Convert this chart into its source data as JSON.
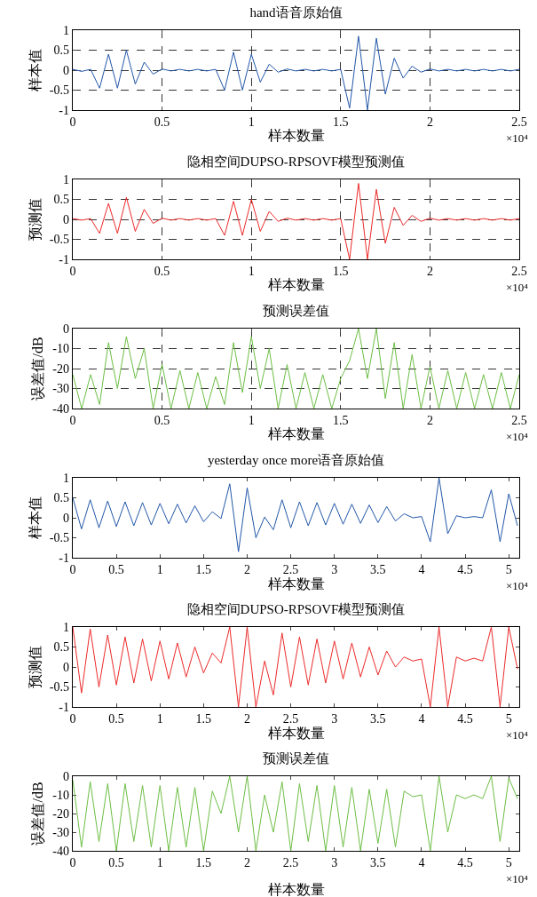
{
  "chart_data": [
    {
      "type": "line",
      "title": "hand语音原始值",
      "xlabel": "样本数量",
      "ylabel": "样本值",
      "annotations": [
        "×10⁴"
      ],
      "grid": true,
      "xlim": [
        0,
        2.5
      ],
      "ylim": [
        -1,
        1
      ],
      "xticks": [
        0,
        0.5,
        1,
        1.5,
        2,
        2.5
      ],
      "yticks": [
        -1,
        -0.5,
        0,
        0.5,
        1
      ],
      "x": [
        0,
        0.05,
        0.1,
        0.15,
        0.2,
        0.25,
        0.3,
        0.35,
        0.4,
        0.45,
        0.5,
        0.55,
        0.6,
        0.65,
        0.7,
        0.75,
        0.8,
        0.85,
        0.9,
        0.95,
        1,
        1.05,
        1.1,
        1.15,
        1.2,
        1.25,
        1.3,
        1.35,
        1.4,
        1.45,
        1.5,
        1.55,
        1.6,
        1.65,
        1.7,
        1.75,
        1.8,
        1.85,
        1.9,
        1.95,
        2,
        2.05,
        2.1,
        2.15,
        2.2,
        2.25,
        2.3,
        2.35,
        2.4,
        2.45,
        2.5
      ],
      "series": [
        {
          "color": "#2257a8",
          "values": [
            0.02,
            -0.03,
            0.02,
            -0.45,
            0.4,
            -0.45,
            0.5,
            -0.35,
            0.2,
            -0.1,
            0.03,
            -0.02,
            0.02,
            -0.02,
            0.02,
            -0.02,
            0.02,
            -0.5,
            0.45,
            -0.5,
            0.4,
            -0.3,
            0.15,
            -0.05,
            0.03,
            -0.02,
            0.02,
            -0.02,
            0.02,
            -0.02,
            0.02,
            -0.95,
            0.85,
            -1,
            0.8,
            -0.6,
            0.3,
            -0.2,
            0.1,
            -0.05,
            0.03,
            -0.02,
            0.02,
            -0.02,
            0.02,
            -0.02,
            0.02,
            -0.02,
            0.02,
            -0.02,
            0.02
          ]
        }
      ]
    },
    {
      "type": "line",
      "title": "隐相空间DUPSO-RPSOVF模型预测值",
      "xlabel": "样本数量",
      "ylabel": "预测值",
      "annotations": [
        "×10⁴"
      ],
      "grid": true,
      "xlim": [
        0,
        2.5
      ],
      "ylim": [
        -1,
        1
      ],
      "xticks": [
        0,
        0.5,
        1,
        1.5,
        2,
        2.5
      ],
      "yticks": [
        -1,
        -0.5,
        0,
        0.5,
        1
      ],
      "x": [
        0,
        0.05,
        0.1,
        0.15,
        0.2,
        0.25,
        0.3,
        0.35,
        0.4,
        0.45,
        0.5,
        0.55,
        0.6,
        0.65,
        0.7,
        0.75,
        0.8,
        0.85,
        0.9,
        0.95,
        1,
        1.05,
        1.1,
        1.15,
        1.2,
        1.25,
        1.3,
        1.35,
        1.4,
        1.45,
        1.5,
        1.55,
        1.6,
        1.65,
        1.7,
        1.75,
        1.8,
        1.85,
        1.9,
        1.95,
        2,
        2.05,
        2.1,
        2.15,
        2.2,
        2.25,
        2.3,
        2.35,
        2.4,
        2.45,
        2.5
      ],
      "series": [
        {
          "color": "#ec2a2a",
          "values": [
            0.02,
            -0.02,
            0.02,
            -0.35,
            0.4,
            -0.35,
            0.55,
            -0.3,
            0.25,
            -0.1,
            0.03,
            -0.02,
            0.02,
            -0.02,
            0.02,
            -0.02,
            0.02,
            -0.4,
            0.45,
            -0.4,
            0.5,
            -0.3,
            0.2,
            -0.05,
            0.03,
            -0.02,
            0.02,
            -0.02,
            0.02,
            -0.02,
            0.02,
            -1,
            0.9,
            -1,
            0.75,
            -0.6,
            0.3,
            -0.15,
            0.1,
            -0.05,
            0.03,
            -0.02,
            0.02,
            -0.02,
            0.02,
            -0.02,
            0.02,
            -0.02,
            0.02,
            -0.02,
            0.02
          ]
        }
      ]
    },
    {
      "type": "line",
      "title": "预测误差值",
      "xlabel": "样本数量",
      "ylabel": "误差值/dB",
      "annotations": [
        "×10⁴"
      ],
      "grid": true,
      "xlim": [
        0,
        2.5
      ],
      "ylim": [
        -40,
        0
      ],
      "xticks": [
        0,
        0.5,
        1,
        1.5,
        2,
        2.5
      ],
      "yticks": [
        -40,
        -30,
        -20,
        -10,
        0
      ],
      "x": [
        0,
        0.05,
        0.1,
        0.15,
        0.2,
        0.25,
        0.3,
        0.35,
        0.4,
        0.45,
        0.5,
        0.55,
        0.6,
        0.65,
        0.7,
        0.75,
        0.8,
        0.85,
        0.9,
        0.95,
        1,
        1.05,
        1.1,
        1.15,
        1.2,
        1.25,
        1.3,
        1.35,
        1.4,
        1.45,
        1.5,
        1.55,
        1.6,
        1.65,
        1.7,
        1.75,
        1.8,
        1.85,
        1.9,
        1.95,
        2,
        2.05,
        2.1,
        2.15,
        2.2,
        2.25,
        2.3,
        2.35,
        2.4,
        2.45,
        2.5
      ],
      "series": [
        {
          "color": "#6dbe45",
          "values": [
            -23,
            -40,
            -23,
            -38,
            -7,
            -30,
            -4,
            -25,
            -10,
            -40,
            -18,
            -40,
            -21,
            -40,
            -22,
            -40,
            -24,
            -38,
            -7,
            -32,
            -4,
            -30,
            -10,
            -40,
            -18,
            -40,
            -22,
            -40,
            -23,
            -40,
            -25,
            -16,
            0,
            -25,
            0,
            -35,
            -7,
            -40,
            -13,
            -40,
            -19,
            -40,
            -21,
            -40,
            -22,
            -40,
            -23,
            -40,
            -22,
            -40,
            -23
          ]
        }
      ]
    },
    {
      "type": "line",
      "title": "yesterday once more语音原始值",
      "xlabel": "样本数量",
      "ylabel": "样本值",
      "annotations": [
        "×10⁴"
      ],
      "xlim": [
        0,
        5.12
      ],
      "ylim": [
        -1,
        1
      ],
      "xticks": [
        0,
        0.5,
        1,
        1.5,
        2,
        2.5,
        3,
        3.5,
        4,
        4.5,
        5
      ],
      "yticks": [
        -1,
        -0.5,
        0,
        0.5,
        1
      ],
      "x": [
        0,
        0.1,
        0.2,
        0.3,
        0.4,
        0.5,
        0.6,
        0.7,
        0.8,
        0.9,
        1,
        1.1,
        1.2,
        1.3,
        1.4,
        1.5,
        1.6,
        1.7,
        1.8,
        1.9,
        2,
        2.1,
        2.2,
        2.3,
        2.4,
        2.5,
        2.6,
        2.7,
        2.8,
        2.9,
        3,
        3.1,
        3.2,
        3.3,
        3.4,
        3.5,
        3.6,
        3.7,
        3.8,
        3.9,
        4,
        4.1,
        4.2,
        4.3,
        4.4,
        4.5,
        4.6,
        4.7,
        4.8,
        4.9,
        5,
        5.1
      ],
      "series": [
        {
          "color": "#2257a8",
          "values": [
            0.5,
            -0.28,
            0.45,
            -0.25,
            0.42,
            -0.22,
            0.4,
            -0.2,
            0.38,
            -0.18,
            0.36,
            -0.15,
            0.34,
            -0.13,
            0.3,
            -0.1,
            0.15,
            -0.02,
            0.85,
            -0.85,
            0.75,
            -0.5,
            0.02,
            -0.3,
            0.45,
            -0.25,
            0.4,
            -0.2,
            0.38,
            -0.18,
            0.36,
            -0.16,
            0.34,
            -0.14,
            0.32,
            -0.12,
            0.28,
            -0.08,
            0.1,
            0,
            0.03,
            -0.6,
            1,
            -0.4,
            0.05,
            0,
            0.03,
            0,
            0.7,
            -0.6,
            0.6,
            -0.2
          ]
        }
      ]
    },
    {
      "type": "line",
      "title": "隐相空间DUPSO-RPSOVF模型预测值",
      "xlabel": "样本数量",
      "ylabel": "预测值",
      "annotations": [
        "×10⁴"
      ],
      "xlim": [
        0,
        5.12
      ],
      "ylim": [
        -1,
        1
      ],
      "xticks": [
        0,
        0.5,
        1,
        1.5,
        2,
        2.5,
        3,
        3.5,
        4,
        4.5,
        5
      ],
      "yticks": [
        -1,
        -0.5,
        0,
        0.5,
        1
      ],
      "x": [
        0,
        0.1,
        0.2,
        0.3,
        0.4,
        0.5,
        0.6,
        0.7,
        0.8,
        0.9,
        1,
        1.1,
        1.2,
        1.3,
        1.4,
        1.5,
        1.6,
        1.7,
        1.8,
        1.9,
        2,
        2.1,
        2.2,
        2.3,
        2.4,
        2.5,
        2.6,
        2.7,
        2.8,
        2.9,
        3,
        3.1,
        3.2,
        3.3,
        3.4,
        3.5,
        3.6,
        3.7,
        3.8,
        3.9,
        4,
        4.1,
        4.2,
        4.3,
        4.4,
        4.5,
        4.6,
        4.7,
        4.8,
        4.9,
        5,
        5.1
      ],
      "series": [
        {
          "color": "#ec2a2a",
          "values": [
            1,
            -0.65,
            0.95,
            -0.5,
            0.8,
            -0.45,
            0.75,
            -0.4,
            0.7,
            -0.35,
            0.65,
            -0.3,
            0.6,
            -0.25,
            0.5,
            -0.15,
            0.35,
            0.1,
            1,
            -1,
            1,
            -1,
            0.15,
            -0.7,
            0.85,
            -0.5,
            0.75,
            -0.45,
            0.7,
            -0.4,
            0.65,
            -0.3,
            0.6,
            -0.25,
            0.5,
            -0.2,
            0.4,
            0,
            0.25,
            0.15,
            0.2,
            -1,
            1,
            -1,
            0.25,
            0.15,
            0.22,
            0.15,
            1,
            -1,
            1,
            -0.05
          ]
        }
      ]
    },
    {
      "type": "line",
      "title": "预测误差值",
      "xlabel": "样本数量",
      "ylabel": "误差值/dB",
      "annotations": [
        "×10⁴"
      ],
      "xlim": [
        0,
        5.12
      ],
      "ylim": [
        -40,
        0
      ],
      "xticks": [
        0,
        0.5,
        1,
        1.5,
        2,
        2.5,
        3,
        3.5,
        4,
        4.5,
        5
      ],
      "yticks": [
        -40,
        -30,
        -20,
        -10,
        0
      ],
      "x": [
        0,
        0.1,
        0.2,
        0.3,
        0.4,
        0.5,
        0.6,
        0.7,
        0.8,
        0.9,
        1,
        1.1,
        1.2,
        1.3,
        1.4,
        1.5,
        1.6,
        1.7,
        1.8,
        1.9,
        2,
        2.1,
        2.2,
        2.3,
        2.4,
        2.5,
        2.6,
        2.7,
        2.8,
        2.9,
        3,
        3.1,
        3.2,
        3.3,
        3.4,
        3.5,
        3.6,
        3.7,
        3.8,
        3.9,
        4,
        4.1,
        4.2,
        4.3,
        4.4,
        4.5,
        4.6,
        4.7,
        4.8,
        4.9,
        5,
        5.1
      ],
      "series": [
        {
          "color": "#6dbe45",
          "values": [
            -2,
            -38,
            -3,
            -35,
            -4,
            -40,
            -4,
            -35,
            -5,
            -38,
            -5,
            -40,
            -6,
            -38,
            -6,
            -40,
            -8,
            -20,
            0,
            -30,
            0,
            -40,
            -10,
            -30,
            -3,
            -40,
            -4,
            -35,
            -5,
            -40,
            -5,
            -38,
            -6,
            -40,
            -7,
            -36,
            -7,
            -38,
            -8,
            -11,
            -10,
            -40,
            0,
            -30,
            -10,
            -12,
            -10,
            -12,
            0,
            -35,
            -1,
            -12
          ]
        }
      ]
    }
  ]
}
